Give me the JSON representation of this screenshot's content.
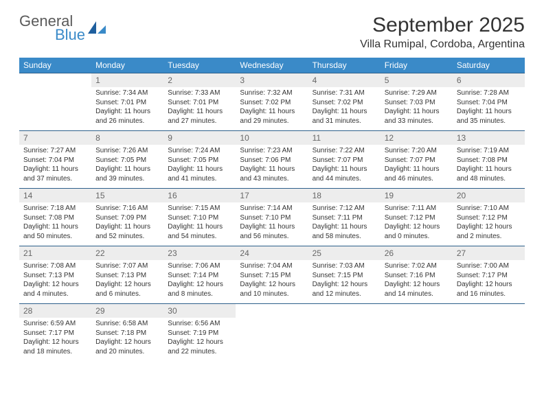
{
  "brand": {
    "general": "General",
    "blue": "Blue"
  },
  "title": "September 2025",
  "location": "Villa Rumipal, Cordoba, Argentina",
  "colors": {
    "header_bg": "#3a8ac8",
    "header_text": "#ffffff",
    "divider": "#2c5f8a",
    "daynum_bg": "#ededed",
    "text": "#333333",
    "logo_gray": "#5a5a5a",
    "logo_blue": "#3a8ac8"
  },
  "weekdays": [
    "Sunday",
    "Monday",
    "Tuesday",
    "Wednesday",
    "Thursday",
    "Friday",
    "Saturday"
  ],
  "weeks": [
    [
      {
        "empty": true
      },
      {
        "day": "1",
        "sunrise": "Sunrise: 7:34 AM",
        "sunset": "Sunset: 7:01 PM",
        "daylight1": "Daylight: 11 hours",
        "daylight2": "and 26 minutes."
      },
      {
        "day": "2",
        "sunrise": "Sunrise: 7:33 AM",
        "sunset": "Sunset: 7:01 PM",
        "daylight1": "Daylight: 11 hours",
        "daylight2": "and 27 minutes."
      },
      {
        "day": "3",
        "sunrise": "Sunrise: 7:32 AM",
        "sunset": "Sunset: 7:02 PM",
        "daylight1": "Daylight: 11 hours",
        "daylight2": "and 29 minutes."
      },
      {
        "day": "4",
        "sunrise": "Sunrise: 7:31 AM",
        "sunset": "Sunset: 7:02 PM",
        "daylight1": "Daylight: 11 hours",
        "daylight2": "and 31 minutes."
      },
      {
        "day": "5",
        "sunrise": "Sunrise: 7:29 AM",
        "sunset": "Sunset: 7:03 PM",
        "daylight1": "Daylight: 11 hours",
        "daylight2": "and 33 minutes."
      },
      {
        "day": "6",
        "sunrise": "Sunrise: 7:28 AM",
        "sunset": "Sunset: 7:04 PM",
        "daylight1": "Daylight: 11 hours",
        "daylight2": "and 35 minutes."
      }
    ],
    [
      {
        "day": "7",
        "sunrise": "Sunrise: 7:27 AM",
        "sunset": "Sunset: 7:04 PM",
        "daylight1": "Daylight: 11 hours",
        "daylight2": "and 37 minutes."
      },
      {
        "day": "8",
        "sunrise": "Sunrise: 7:26 AM",
        "sunset": "Sunset: 7:05 PM",
        "daylight1": "Daylight: 11 hours",
        "daylight2": "and 39 minutes."
      },
      {
        "day": "9",
        "sunrise": "Sunrise: 7:24 AM",
        "sunset": "Sunset: 7:05 PM",
        "daylight1": "Daylight: 11 hours",
        "daylight2": "and 41 minutes."
      },
      {
        "day": "10",
        "sunrise": "Sunrise: 7:23 AM",
        "sunset": "Sunset: 7:06 PM",
        "daylight1": "Daylight: 11 hours",
        "daylight2": "and 43 minutes."
      },
      {
        "day": "11",
        "sunrise": "Sunrise: 7:22 AM",
        "sunset": "Sunset: 7:07 PM",
        "daylight1": "Daylight: 11 hours",
        "daylight2": "and 44 minutes."
      },
      {
        "day": "12",
        "sunrise": "Sunrise: 7:20 AM",
        "sunset": "Sunset: 7:07 PM",
        "daylight1": "Daylight: 11 hours",
        "daylight2": "and 46 minutes."
      },
      {
        "day": "13",
        "sunrise": "Sunrise: 7:19 AM",
        "sunset": "Sunset: 7:08 PM",
        "daylight1": "Daylight: 11 hours",
        "daylight2": "and 48 minutes."
      }
    ],
    [
      {
        "day": "14",
        "sunrise": "Sunrise: 7:18 AM",
        "sunset": "Sunset: 7:08 PM",
        "daylight1": "Daylight: 11 hours",
        "daylight2": "and 50 minutes."
      },
      {
        "day": "15",
        "sunrise": "Sunrise: 7:16 AM",
        "sunset": "Sunset: 7:09 PM",
        "daylight1": "Daylight: 11 hours",
        "daylight2": "and 52 minutes."
      },
      {
        "day": "16",
        "sunrise": "Sunrise: 7:15 AM",
        "sunset": "Sunset: 7:10 PM",
        "daylight1": "Daylight: 11 hours",
        "daylight2": "and 54 minutes."
      },
      {
        "day": "17",
        "sunrise": "Sunrise: 7:14 AM",
        "sunset": "Sunset: 7:10 PM",
        "daylight1": "Daylight: 11 hours",
        "daylight2": "and 56 minutes."
      },
      {
        "day": "18",
        "sunrise": "Sunrise: 7:12 AM",
        "sunset": "Sunset: 7:11 PM",
        "daylight1": "Daylight: 11 hours",
        "daylight2": "and 58 minutes."
      },
      {
        "day": "19",
        "sunrise": "Sunrise: 7:11 AM",
        "sunset": "Sunset: 7:12 PM",
        "daylight1": "Daylight: 12 hours",
        "daylight2": "and 0 minutes."
      },
      {
        "day": "20",
        "sunrise": "Sunrise: 7:10 AM",
        "sunset": "Sunset: 7:12 PM",
        "daylight1": "Daylight: 12 hours",
        "daylight2": "and 2 minutes."
      }
    ],
    [
      {
        "day": "21",
        "sunrise": "Sunrise: 7:08 AM",
        "sunset": "Sunset: 7:13 PM",
        "daylight1": "Daylight: 12 hours",
        "daylight2": "and 4 minutes."
      },
      {
        "day": "22",
        "sunrise": "Sunrise: 7:07 AM",
        "sunset": "Sunset: 7:13 PM",
        "daylight1": "Daylight: 12 hours",
        "daylight2": "and 6 minutes."
      },
      {
        "day": "23",
        "sunrise": "Sunrise: 7:06 AM",
        "sunset": "Sunset: 7:14 PM",
        "daylight1": "Daylight: 12 hours",
        "daylight2": "and 8 minutes."
      },
      {
        "day": "24",
        "sunrise": "Sunrise: 7:04 AM",
        "sunset": "Sunset: 7:15 PM",
        "daylight1": "Daylight: 12 hours",
        "daylight2": "and 10 minutes."
      },
      {
        "day": "25",
        "sunrise": "Sunrise: 7:03 AM",
        "sunset": "Sunset: 7:15 PM",
        "daylight1": "Daylight: 12 hours",
        "daylight2": "and 12 minutes."
      },
      {
        "day": "26",
        "sunrise": "Sunrise: 7:02 AM",
        "sunset": "Sunset: 7:16 PM",
        "daylight1": "Daylight: 12 hours",
        "daylight2": "and 14 minutes."
      },
      {
        "day": "27",
        "sunrise": "Sunrise: 7:00 AM",
        "sunset": "Sunset: 7:17 PM",
        "daylight1": "Daylight: 12 hours",
        "daylight2": "and 16 minutes."
      }
    ],
    [
      {
        "day": "28",
        "sunrise": "Sunrise: 6:59 AM",
        "sunset": "Sunset: 7:17 PM",
        "daylight1": "Daylight: 12 hours",
        "daylight2": "and 18 minutes."
      },
      {
        "day": "29",
        "sunrise": "Sunrise: 6:58 AM",
        "sunset": "Sunset: 7:18 PM",
        "daylight1": "Daylight: 12 hours",
        "daylight2": "and 20 minutes."
      },
      {
        "day": "30",
        "sunrise": "Sunrise: 6:56 AM",
        "sunset": "Sunset: 7:19 PM",
        "daylight1": "Daylight: 12 hours",
        "daylight2": "and 22 minutes."
      },
      {
        "empty": true
      },
      {
        "empty": true
      },
      {
        "empty": true
      },
      {
        "empty": true
      }
    ]
  ]
}
